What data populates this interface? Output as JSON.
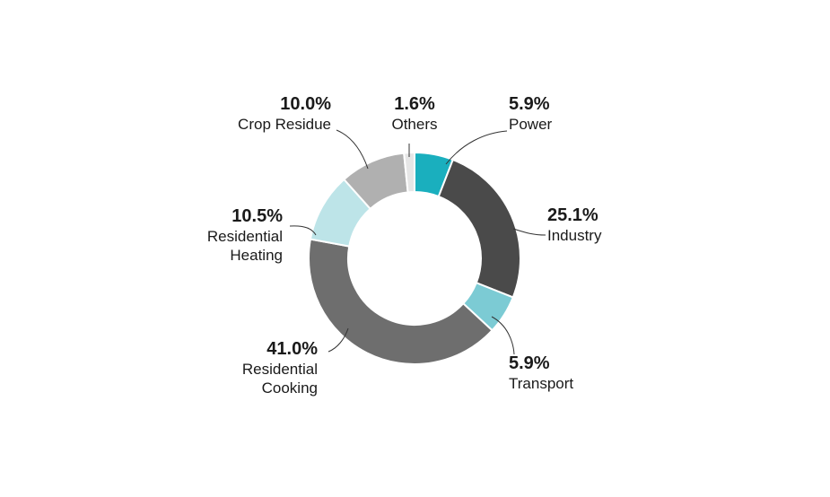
{
  "chart_data": {
    "type": "pie",
    "donut": true,
    "title": "",
    "legend": "none",
    "slices": [
      {
        "name": "Power",
        "value": 5.9,
        "label_value": "5.9%",
        "label_name": [
          "Power"
        ],
        "color": "#1aafbe"
      },
      {
        "name": "Industry",
        "value": 25.1,
        "label_value": "25.1%",
        "label_name": [
          "Industry"
        ],
        "color": "#4a4a4a"
      },
      {
        "name": "Transport",
        "value": 5.9,
        "label_value": "5.9%",
        "label_name": [
          "Transport"
        ],
        "color": "#7ccbd4"
      },
      {
        "name": "Residential Cooking",
        "value": 41.0,
        "label_value": "41.0%",
        "label_name": [
          "Residential",
          "Cooking"
        ],
        "color": "#6e6e6e"
      },
      {
        "name": "Residential Heating",
        "value": 10.5,
        "label_value": "10.5%",
        "label_name": [
          "Residential",
          "Heating"
        ],
        "color": "#bde4e8"
      },
      {
        "name": "Crop Residue",
        "value": 10.0,
        "label_value": "10.0%",
        "label_name": [
          "Crop Residue"
        ],
        "color": "#b0b0b0"
      },
      {
        "name": "Others",
        "value": 1.6,
        "label_value": "1.6%",
        "label_name": [
          "Others"
        ],
        "color": "#e6e6e6"
      }
    ]
  }
}
